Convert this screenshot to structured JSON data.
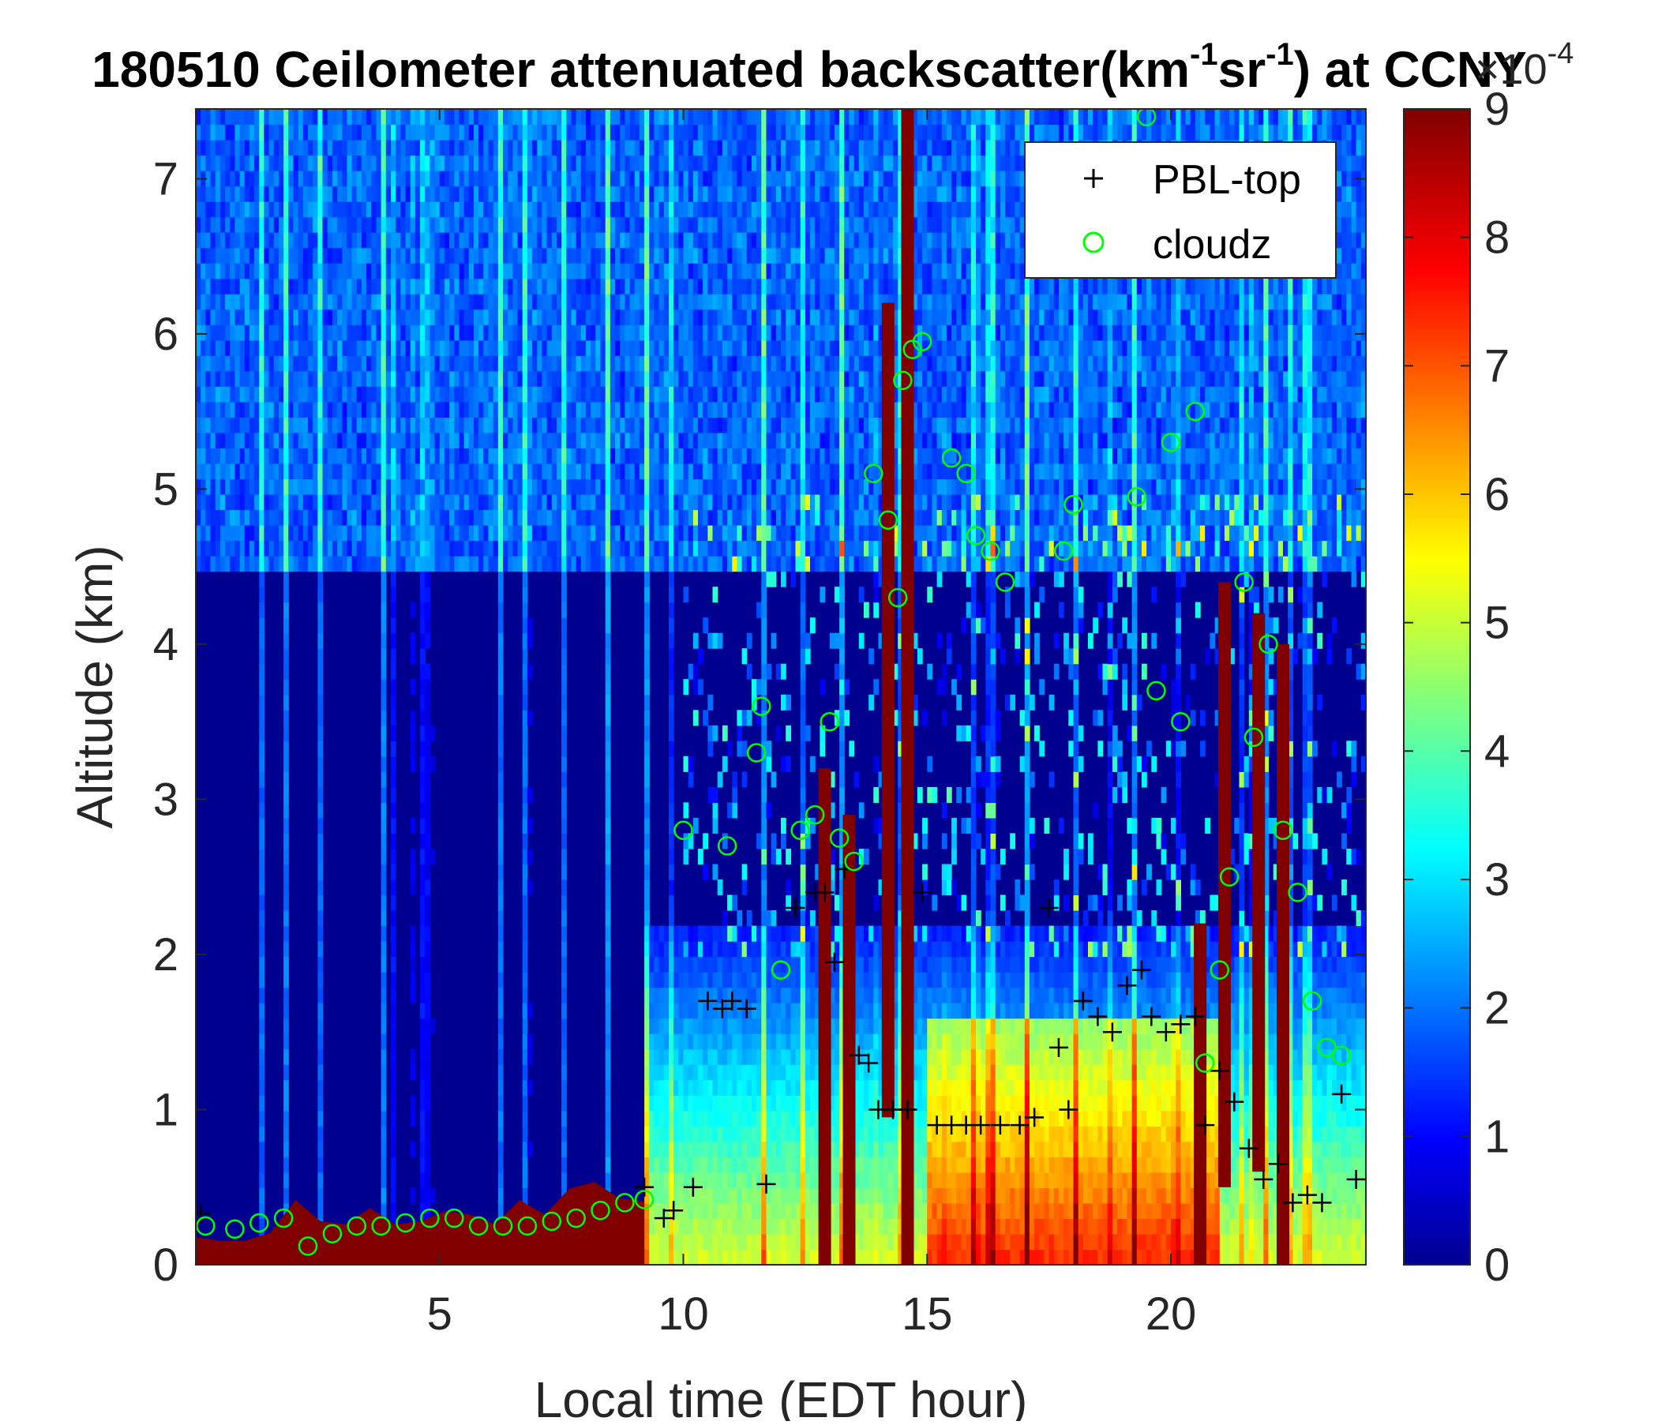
{
  "chart_data": {
    "type": "heatmap",
    "title": {
      "date": "180510",
      "main": " Ceilometer attenuated backscatter(km",
      "sup1": "-1",
      "mid": "sr",
      "sup2": "-1",
      "tail": ") at CCNY"
    },
    "xlabel": "Local time (EDT hour)",
    "ylabel": "Altitude (km)",
    "xlim": [
      0,
      24
    ],
    "ylim": [
      0,
      7.45
    ],
    "xticks": [
      5,
      10,
      15,
      20
    ],
    "yticks": [
      0,
      1,
      2,
      3,
      4,
      5,
      6,
      7
    ],
    "colorbar": {
      "min": 0,
      "max": 9,
      "ticks": [
        0,
        1,
        2,
        3,
        4,
        5,
        6,
        7,
        8,
        9
      ],
      "multiplier": {
        "base": "×10",
        "exponent": "-4"
      },
      "colormap": "jet"
    },
    "legend": {
      "placement": "top-right",
      "entries": [
        {
          "label": "PBL-top",
          "marker": "+",
          "color": "#000000"
        },
        {
          "label": "cloudz",
          "marker": "o",
          "color": "#00ff00"
        }
      ]
    },
    "series": [
      {
        "name": "PBL-top",
        "marker": "+",
        "x": [
          0.1,
          9.2,
          9.6,
          9.8,
          10.2,
          10.5,
          10.8,
          11.0,
          11.3,
          11.7,
          12.3,
          12.7,
          12.9,
          13.1,
          13.3,
          13.6,
          13.8,
          14.0,
          14.3,
          14.6,
          14.9,
          15.2,
          15.5,
          15.8,
          16.1,
          16.5,
          16.9,
          17.2,
          17.5,
          17.7,
          17.9,
          18.2,
          18.5,
          18.8,
          19.1,
          19.4,
          19.6,
          19.9,
          20.2,
          20.5,
          20.7,
          21.0,
          21.3,
          21.6,
          21.9,
          22.2,
          22.5,
          22.8,
          23.1,
          23.5,
          23.8
        ],
        "y": [
          0.33,
          0.5,
          0.3,
          0.35,
          0.5,
          1.7,
          1.65,
          1.7,
          1.65,
          0.52,
          2.3,
          2.4,
          2.4,
          1.95,
          2.55,
          1.35,
          1.3,
          1.0,
          1.0,
          1.0,
          2.4,
          0.9,
          0.9,
          0.9,
          0.9,
          0.9,
          0.9,
          0.95,
          2.3,
          1.4,
          1.0,
          1.7,
          1.6,
          1.5,
          1.8,
          1.9,
          1.6,
          1.5,
          1.55,
          1.6,
          0.9,
          1.25,
          1.05,
          0.75,
          0.55,
          0.65,
          0.4,
          0.45,
          0.4,
          1.1,
          0.55
        ]
      },
      {
        "name": "cloudz",
        "marker": "o",
        "x": [
          0.2,
          0.8,
          1.3,
          1.8,
          2.3,
          2.8,
          3.3,
          3.8,
          4.3,
          4.8,
          5.3,
          5.8,
          6.3,
          6.8,
          7.3,
          7.8,
          8.3,
          8.8,
          9.2,
          10.0,
          10.9,
          11.5,
          11.6,
          12.0,
          12.4,
          12.7,
          13.0,
          13.2,
          13.5,
          13.9,
          14.2,
          14.4,
          14.5,
          14.7,
          14.9,
          15.5,
          15.8,
          16.0,
          16.3,
          16.6,
          17.8,
          18.0,
          19.3,
          19.5,
          19.7,
          20.0,
          20.2,
          20.5,
          20.7,
          21.0,
          21.2,
          21.5,
          21.7,
          22.0,
          22.3,
          22.6,
          22.9,
          23.2,
          23.5
        ],
        "y": [
          0.25,
          0.23,
          0.27,
          0.3,
          0.12,
          0.2,
          0.25,
          0.25,
          0.27,
          0.3,
          0.3,
          0.25,
          0.25,
          0.25,
          0.28,
          0.3,
          0.35,
          0.4,
          0.42,
          2.8,
          2.7,
          3.3,
          3.6,
          1.9,
          2.8,
          2.9,
          3.5,
          2.75,
          2.6,
          5.1,
          4.8,
          4.3,
          5.7,
          5.9,
          5.95,
          5.2,
          5.1,
          4.7,
          4.6,
          4.4,
          4.6,
          4.9,
          4.95,
          7.4,
          3.7,
          5.3,
          3.5,
          5.5,
          1.3,
          1.9,
          2.5,
          4.4,
          3.4,
          4.0,
          2.8,
          2.4,
          1.7,
          1.4,
          1.35
        ]
      }
    ],
    "profile_fraction": [
      0.12,
      0.1,
      0.1,
      0.15,
      0.35,
      0.22,
      0.2,
      0.3,
      0.2,
      0.22,
      0.28,
      0.26,
      0.2,
      0.35,
      0.26,
      0.42,
      0.46,
      0.36,
      0.34
    ]
  }
}
